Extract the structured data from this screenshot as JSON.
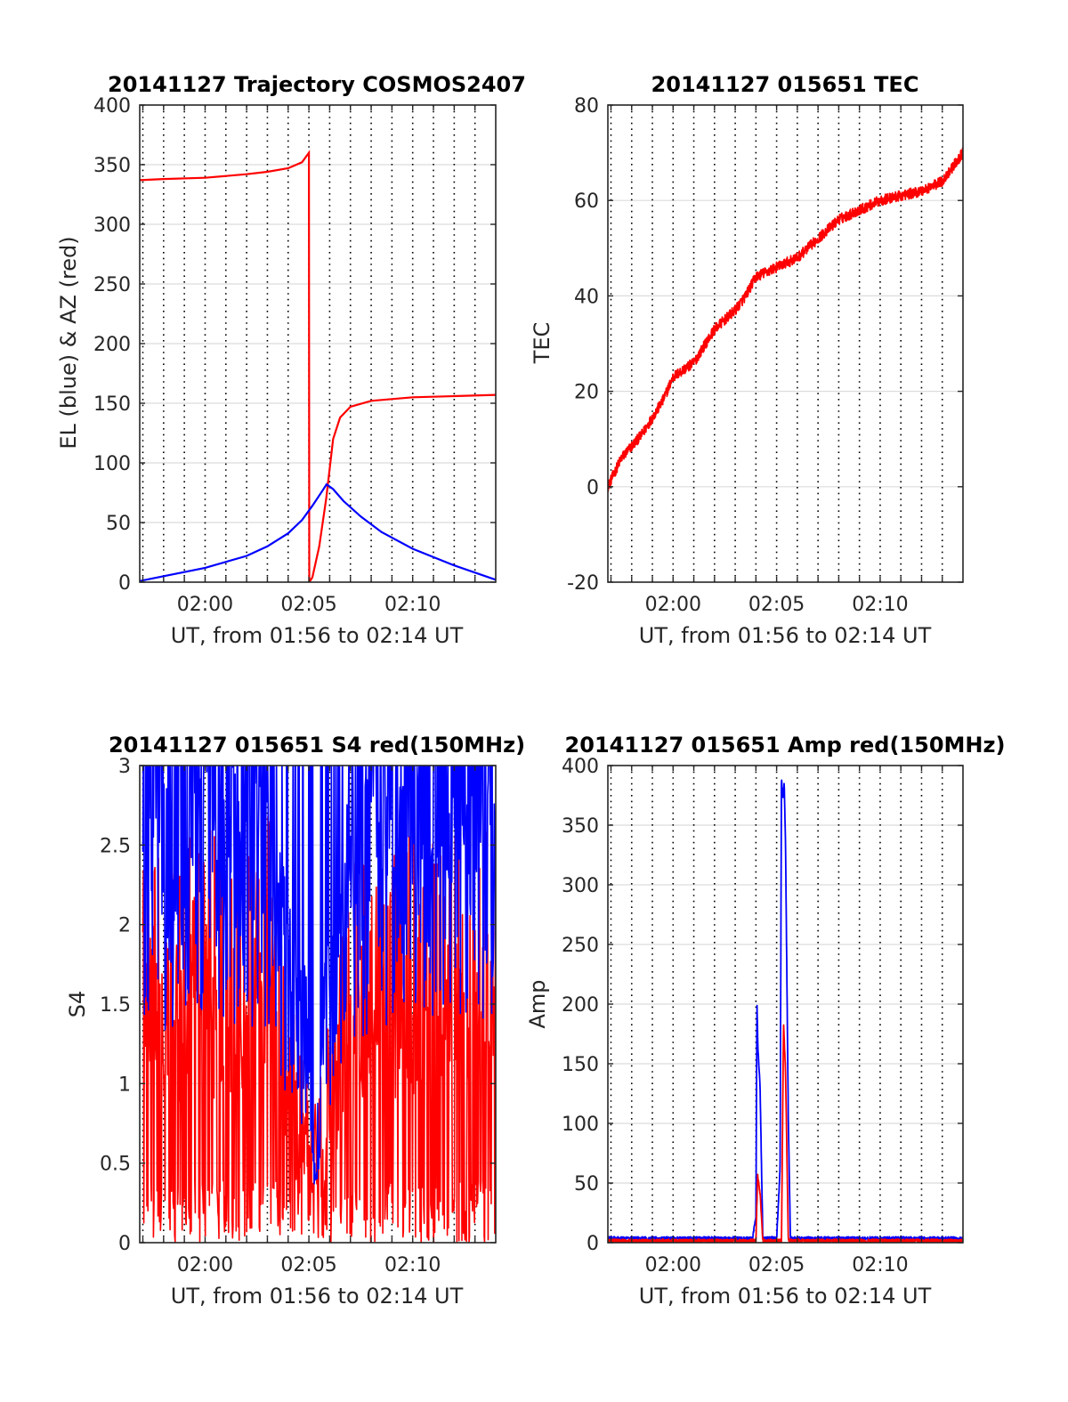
{
  "chart_data": [
    {
      "type": "line",
      "title": "20141127 Trajectory COSMOS2407",
      "xlabel": "UT, from 01:56 to 02:14 UT",
      "ylabel": "EL (blue) & AZ (red)",
      "xlim": [
        "01:56:51",
        "02:14:00"
      ],
      "ylim": [
        0,
        400
      ],
      "xticks": [
        "02:00",
        "02:05",
        "02:10"
      ],
      "yticks": [
        0,
        50,
        100,
        150,
        200,
        250,
        300,
        350,
        400
      ],
      "grid": true,
      "colors": {
        "series1": "#ff0000",
        "series2": "#0000ff"
      },
      "series": [
        {
          "color": "#ff0000",
          "x": [
            "01:56:51",
            "01:58:00",
            "02:00:00",
            "02:02:00",
            "02:03:00",
            "02:04:00",
            "02:04:40",
            "02:05:00",
            "02:05:01",
            "02:05:10",
            "02:05:30",
            "02:05:50",
            "02:06:10",
            "02:06:30",
            "02:07:00",
            "02:08:00",
            "02:10:00",
            "02:12:00",
            "02:14:00"
          ],
          "y": [
            337,
            338,
            339,
            342,
            344,
            347,
            352,
            360,
            0,
            4,
            30,
            70,
            120,
            138,
            147,
            152,
            155,
            156,
            157
          ]
        },
        {
          "color": "#0000ff",
          "x": [
            "01:56:51",
            "01:58:00",
            "02:00:00",
            "02:02:00",
            "02:03:00",
            "02:04:00",
            "02:04:40",
            "02:05:10",
            "02:05:40",
            "02:05:51",
            "02:06:10",
            "02:06:40",
            "02:07:30",
            "02:08:30",
            "02:10:00",
            "02:12:00",
            "02:14:00"
          ],
          "y": [
            1,
            5,
            12,
            22,
            30,
            41,
            52,
            64,
            77,
            82,
            78,
            68,
            55,
            42,
            28,
            14,
            2
          ]
        }
      ]
    },
    {
      "type": "line",
      "title": "20141127 015651 TEC",
      "xlabel": "UT, from 01:56 to 02:14 UT",
      "ylabel": "TEC",
      "xlim": [
        "01:56:51",
        "02:14:00"
      ],
      "ylim": [
        -20,
        80
      ],
      "xticks": [
        "02:00",
        "02:05",
        "02:10"
      ],
      "yticks": [
        -20,
        0,
        20,
        40,
        60,
        80
      ],
      "grid": true,
      "series": [
        {
          "color": "#ff0000",
          "x": [
            "01:56:51",
            "01:57:30",
            "01:58:30",
            "01:59:30",
            "02:00:00",
            "02:01:00",
            "02:02:00",
            "02:03:00",
            "02:03:30",
            "02:04:00",
            "02:05:00",
            "02:06:00",
            "02:07:00",
            "02:08:00",
            "02:09:00",
            "02:10:00",
            "02:11:00",
            "02:12:00",
            "02:13:00",
            "02:13:30",
            "02:14:00"
          ],
          "y": [
            0,
            6,
            11,
            18,
            23,
            26,
            33,
            37,
            40,
            44,
            46,
            48,
            52,
            56,
            58,
            60,
            61,
            62,
            64,
            67,
            70
          ]
        }
      ]
    },
    {
      "type": "line",
      "title": "20141127 015651 S4 red(150MHz)",
      "xlabel": "UT, from 01:56 to 02:14 UT",
      "ylabel": "S4",
      "xlim": [
        "01:56:51",
        "02:14:00"
      ],
      "ylim": [
        0,
        3
      ],
      "xticks": [
        "02:00",
        "02:05",
        "02:10"
      ],
      "yticks": [
        0,
        0.5,
        1,
        1.5,
        2,
        2.5,
        3
      ],
      "grid": true,
      "series": [
        {
          "color": "#ff0000",
          "x": [
            "01:57:00",
            "01:58:00",
            "01:59:00",
            "02:00:00",
            "02:01:00",
            "02:02:00",
            "02:03:00",
            "02:03:30",
            "02:04:00",
            "02:04:30",
            "02:05:00",
            "02:05:20",
            "02:05:40",
            "02:06:00",
            "02:07:00",
            "02:08:00",
            "02:09:00",
            "02:10:00",
            "02:11:00",
            "02:12:00",
            "02:13:00",
            "02:14:00"
          ],
          "y": [
            1.5,
            1.3,
            1.4,
            1.5,
            1.5,
            1.6,
            1.6,
            1.2,
            0.9,
            0.8,
            0.6,
            0.5,
            0.7,
            0.8,
            1.3,
            1.5,
            1.4,
            1.5,
            1.4,
            1.5,
            1.4,
            1.5
          ]
        },
        {
          "color": "#0000ff",
          "x": [
            "01:57:00",
            "01:58:00",
            "01:59:00",
            "02:00:00",
            "02:01:00",
            "02:02:00",
            "02:03:00",
            "02:03:30",
            "02:04:00",
            "02:04:30",
            "02:05:00",
            "02:05:20",
            "02:05:40",
            "02:06:00",
            "02:07:00",
            "02:08:00",
            "02:09:00",
            "02:10:00",
            "02:11:00",
            "02:12:00",
            "02:13:00",
            "02:14:00"
          ],
          "y": [
            2.4,
            2.2,
            2.3,
            2.4,
            2.3,
            2.2,
            2.1,
            1.8,
            1.5,
            1.3,
            1.1,
            0.4,
            1.2,
            1.4,
            2.0,
            2.2,
            2.3,
            2.2,
            2.3,
            2.2,
            2.3,
            2.2
          ]
        }
      ]
    },
    {
      "type": "line",
      "title": "20141127 015651 Amp red(150MHz)",
      "xlabel": "UT, from 01:56 to 02:14 UT",
      "ylabel": "Amp",
      "xlim": [
        "01:56:51",
        "02:14:00"
      ],
      "ylim": [
        0,
        400
      ],
      "xticks": [
        "02:00",
        "02:05",
        "02:10"
      ],
      "yticks": [
        0,
        50,
        100,
        150,
        200,
        250,
        300,
        350,
        400
      ],
      "grid": true,
      "series": [
        {
          "color": "#0000ff",
          "x": [
            "01:56:51",
            "02:03:50",
            "02:04:00",
            "02:04:03",
            "02:04:06",
            "02:04:12",
            "02:04:20",
            "02:05:00",
            "02:05:10",
            "02:05:14",
            "02:05:18",
            "02:05:22",
            "02:05:26",
            "02:05:34",
            "02:05:40",
            "02:14:00"
          ],
          "y": [
            2,
            2,
            20,
            199,
            160,
            130,
            2,
            2,
            60,
            388,
            370,
            384,
            330,
            100,
            2,
            2
          ]
        },
        {
          "color": "#ff0000",
          "x": [
            "01:56:51",
            "02:04:00",
            "02:04:05",
            "02:04:12",
            "02:04:20",
            "02:05:14",
            "02:05:20",
            "02:05:26",
            "02:05:34",
            "02:14:00"
          ],
          "y": [
            0,
            0,
            55,
            40,
            0,
            0,
            182,
            140,
            0,
            0
          ]
        }
      ]
    }
  ]
}
